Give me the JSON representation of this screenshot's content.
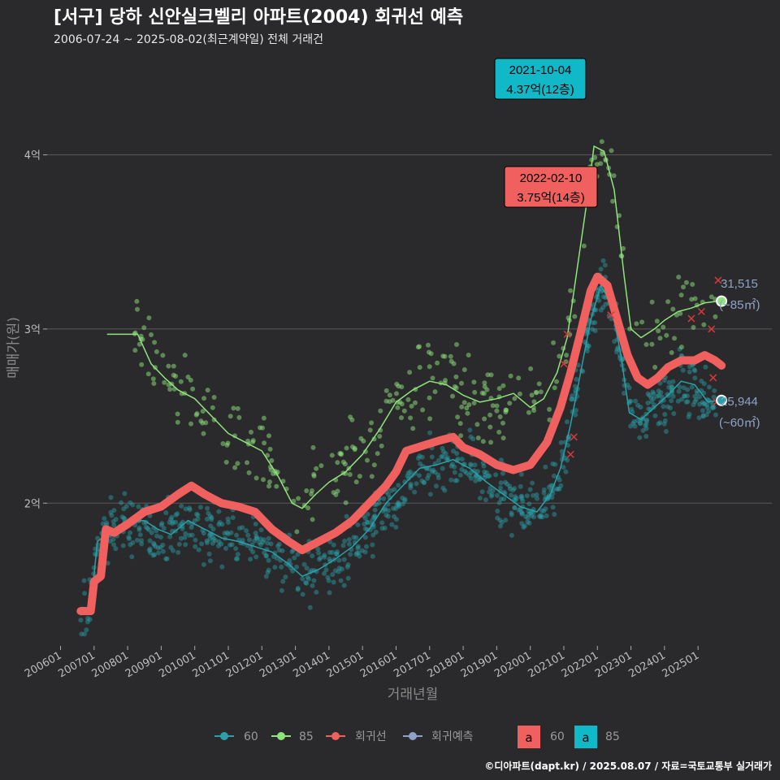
{
  "title": "[서구] 당하 신안실크벨리 아파트(2004) 회귀선 예측",
  "subtitle": "2006-07-24 ~ 2025-08-02(최근계약일) 전체 거래건",
  "footer": "©디아파트(dapt.kr) / 2025.08.07 / 자료=국토교통부 실거래가",
  "colors": {
    "background": "#2a2a2c",
    "s60": "#2aa0a8",
    "s85": "#8fe37c",
    "regression": "#f0605e",
    "forecast": "#8fa3c8",
    "grid": "#5a5a5a",
    "ann60_fill": "#f0605e",
    "ann85_fill": "#10b8c8"
  },
  "chart_data": {
    "type": "line",
    "xlabel": "거래년월",
    "ylabel": "매매가(원)",
    "x_ticks": [
      "200601",
      "200701",
      "200801",
      "200901",
      "201001",
      "201101",
      "201201",
      "201301",
      "201401",
      "201501",
      "201601",
      "201701",
      "201801",
      "201901",
      "202001",
      "202101",
      "202201",
      "202301",
      "202401",
      "202501"
    ],
    "y_ticks": [
      {
        "value": 2,
        "label": "2억"
      },
      {
        "value": 3,
        "label": "3억"
      },
      {
        "value": 4,
        "label": "4억"
      }
    ],
    "xlim": [
      2005.6,
      2027.2
    ],
    "ylim": [
      1.18,
      4.6
    ],
    "series": [
      {
        "name": "60",
        "points": [
          [
            2006.6,
            1.4
          ],
          [
            2006.9,
            1.4
          ],
          [
            2007.1,
            1.78
          ],
          [
            2007.6,
            1.85
          ],
          [
            2008.0,
            1.9
          ],
          [
            2008.5,
            1.9
          ],
          [
            2008.9,
            1.85
          ],
          [
            2009.3,
            1.82
          ],
          [
            2009.8,
            1.9
          ],
          [
            2010.3,
            1.85
          ],
          [
            2010.8,
            1.8
          ],
          [
            2011.3,
            1.78
          ],
          [
            2011.8,
            1.75
          ],
          [
            2012.3,
            1.72
          ],
          [
            2012.8,
            1.65
          ],
          [
            2013.2,
            1.58
          ],
          [
            2013.7,
            1.62
          ],
          [
            2014.2,
            1.68
          ],
          [
            2014.7,
            1.75
          ],
          [
            2015.2,
            1.85
          ],
          [
            2015.7,
            2.0
          ],
          [
            2016.2,
            2.1
          ],
          [
            2016.7,
            2.2
          ],
          [
            2017.2,
            2.22
          ],
          [
            2017.7,
            2.25
          ],
          [
            2018.2,
            2.2
          ],
          [
            2018.7,
            2.12
          ],
          [
            2019.2,
            2.05
          ],
          [
            2019.7,
            1.98
          ],
          [
            2020.2,
            1.95
          ],
          [
            2020.6,
            2.05
          ],
          [
            2020.9,
            2.2
          ],
          [
            2021.2,
            2.45
          ],
          [
            2021.5,
            2.75
          ],
          [
            2021.8,
            3.05
          ],
          [
            2022.1,
            3.25
          ],
          [
            2022.4,
            3.15
          ],
          [
            2022.7,
            2.85
          ],
          [
            2022.95,
            2.52
          ],
          [
            2023.3,
            2.48
          ],
          [
            2023.7,
            2.55
          ],
          [
            2024.1,
            2.62
          ],
          [
            2024.5,
            2.7
          ],
          [
            2024.9,
            2.68
          ],
          [
            2025.3,
            2.58
          ],
          [
            2025.6,
            2.59
          ]
        ]
      },
      {
        "name": "85",
        "points": [
          [
            2007.4,
            2.97
          ],
          [
            2007.8,
            2.97
          ],
          [
            2008.3,
            2.97
          ],
          [
            2008.7,
            2.8
          ],
          [
            2009.1,
            2.72
          ],
          [
            2009.5,
            2.65
          ],
          [
            2010.0,
            2.6
          ],
          [
            2010.5,
            2.5
          ],
          [
            2011.0,
            2.4
          ],
          [
            2011.5,
            2.35
          ],
          [
            2012.0,
            2.3
          ],
          [
            2012.5,
            2.15
          ],
          [
            2012.9,
            2.0
          ],
          [
            2013.2,
            1.97
          ],
          [
            2013.6,
            2.05
          ],
          [
            2014.0,
            2.12
          ],
          [
            2014.5,
            2.18
          ],
          [
            2015.0,
            2.28
          ],
          [
            2015.5,
            2.42
          ],
          [
            2016.0,
            2.58
          ],
          [
            2016.5,
            2.65
          ],
          [
            2017.0,
            2.7
          ],
          [
            2017.5,
            2.68
          ],
          [
            2018.0,
            2.62
          ],
          [
            2018.5,
            2.58
          ],
          [
            2019.0,
            2.6
          ],
          [
            2019.5,
            2.63
          ],
          [
            2020.0,
            2.55
          ],
          [
            2020.4,
            2.6
          ],
          [
            2020.8,
            2.75
          ],
          [
            2021.1,
            2.95
          ],
          [
            2021.4,
            3.35
          ],
          [
            2021.7,
            3.75
          ],
          [
            2021.9,
            4.05
          ],
          [
            2022.2,
            4.02
          ],
          [
            2022.5,
            3.8
          ],
          [
            2022.8,
            3.3
          ],
          [
            2023.0,
            3.0
          ],
          [
            2023.3,
            2.95
          ],
          [
            2023.7,
            3.0
          ],
          [
            2024.0,
            3.05
          ],
          [
            2024.4,
            3.1
          ],
          [
            2024.8,
            3.12
          ],
          [
            2025.2,
            3.15
          ],
          [
            2025.6,
            3.16
          ]
        ]
      },
      {
        "name": "회귀선",
        "points": [
          [
            2006.6,
            1.38
          ],
          [
            2006.9,
            1.38
          ],
          [
            2007.0,
            1.55
          ],
          [
            2007.2,
            1.58
          ],
          [
            2007.35,
            1.85
          ],
          [
            2007.6,
            1.83
          ],
          [
            2008.0,
            1.88
          ],
          [
            2008.5,
            1.95
          ],
          [
            2009.0,
            1.98
          ],
          [
            2009.5,
            2.05
          ],
          [
            2009.9,
            2.1
          ],
          [
            2010.3,
            2.05
          ],
          [
            2010.8,
            2.0
          ],
          [
            2011.3,
            1.98
          ],
          [
            2011.8,
            1.95
          ],
          [
            2012.3,
            1.85
          ],
          [
            2012.8,
            1.78
          ],
          [
            2013.2,
            1.73
          ],
          [
            2013.7,
            1.78
          ],
          [
            2014.2,
            1.83
          ],
          [
            2014.7,
            1.9
          ],
          [
            2015.2,
            2.0
          ],
          [
            2015.7,
            2.1
          ],
          [
            2016.0,
            2.18
          ],
          [
            2016.3,
            2.3
          ],
          [
            2016.8,
            2.33
          ],
          [
            2017.3,
            2.36
          ],
          [
            2017.7,
            2.38
          ],
          [
            2018.0,
            2.32
          ],
          [
            2018.5,
            2.28
          ],
          [
            2019.0,
            2.22
          ],
          [
            2019.5,
            2.19
          ],
          [
            2020.0,
            2.22
          ],
          [
            2020.5,
            2.35
          ],
          [
            2020.9,
            2.55
          ],
          [
            2021.2,
            2.75
          ],
          [
            2021.5,
            2.98
          ],
          [
            2021.8,
            3.22
          ],
          [
            2022.0,
            3.3
          ],
          [
            2022.3,
            3.25
          ],
          [
            2022.6,
            3.05
          ],
          [
            2022.9,
            2.85
          ],
          [
            2023.2,
            2.72
          ],
          [
            2023.5,
            2.68
          ],
          [
            2023.8,
            2.72
          ],
          [
            2024.1,
            2.78
          ],
          [
            2024.5,
            2.82
          ],
          [
            2024.9,
            2.82
          ],
          [
            2025.2,
            2.85
          ],
          [
            2025.5,
            2.82
          ],
          [
            2025.7,
            2.79
          ]
        ]
      }
    ],
    "annotations": [
      {
        "date": "2021-10-04",
        "value_label": "4.37억(12층)",
        "series": "85",
        "x": 2021.76,
        "y": 4.37
      },
      {
        "date": "2022-02-10",
        "value_label": "3.75억(14층)",
        "series": "60",
        "x": 2022.11,
        "y": 3.75
      }
    ],
    "end_labels": [
      {
        "series": "85",
        "value": "31,515",
        "area": "(~85㎡)",
        "x": 2025.7,
        "y": 3.16
      },
      {
        "series": "60",
        "value": "25,944",
        "area": "(~60㎡)",
        "x": 2025.7,
        "y": 2.59
      }
    ],
    "legend": {
      "position": "bottom",
      "items": [
        "60",
        "85",
        "회귀선",
        "회귀예측"
      ],
      "label_items": [
        {
          "glyph": "a",
          "label": "60"
        },
        {
          "glyph": "a",
          "label": "85"
        }
      ]
    }
  }
}
